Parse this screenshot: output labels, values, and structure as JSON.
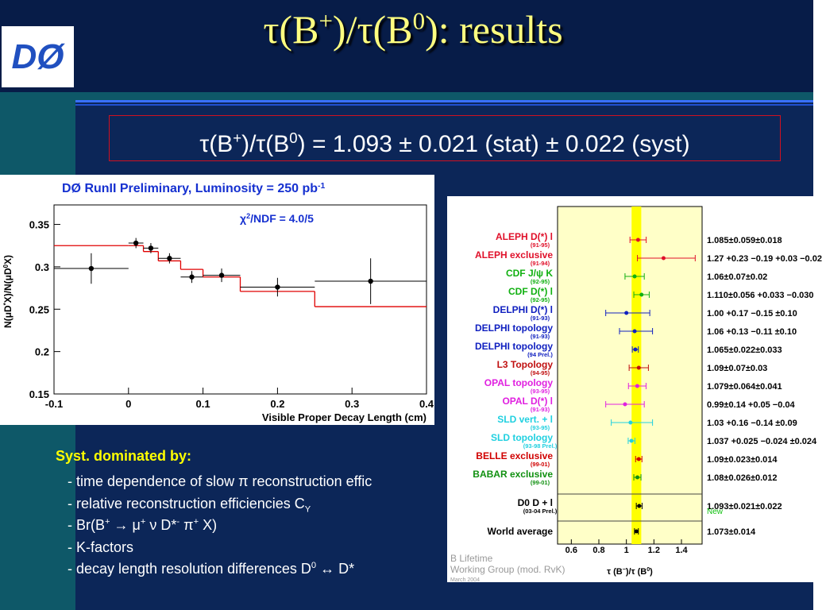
{
  "logo": "DØ",
  "title": [
    {
      "t": "τ(B"
    },
    {
      "sup": "+"
    },
    {
      "t": ")/τ(B"
    },
    {
      "sup": "0"
    },
    {
      "t": "): results"
    }
  ],
  "result": [
    {
      "t": "τ(B"
    },
    {
      "sup": "+"
    },
    {
      "t": ")/τ(B"
    },
    {
      "sup": "0"
    },
    {
      "t": ") = 1.093 ± 0.021 (stat) ± 0.022 (syst)"
    }
  ],
  "syst": {
    "heading": "Syst. dominated by:",
    "items": [
      [
        {
          "t": "- time dependence of slow π reconstruction effic"
        }
      ],
      [
        {
          "t": "- relative reconstruction efficiencies C"
        },
        {
          "sub": "Y"
        }
      ],
      [
        {
          "t": "- Br(B"
        },
        {
          "sup": "+"
        },
        {
          "t": " → μ"
        },
        {
          "sup": "+"
        },
        {
          "t": " ν D*"
        },
        {
          "sup": "-"
        },
        {
          "t": " π"
        },
        {
          "sup": "+"
        },
        {
          "t": " X)"
        }
      ],
      [
        {
          "t": "- K-factors"
        }
      ],
      [
        {
          "t": "- decay length resolution differences D"
        },
        {
          "sup": "0"
        },
        {
          "t": " ↔ D*"
        }
      ]
    ]
  },
  "chart_data": [
    {
      "type": "scatter",
      "title": [
        {
          "t": "DØ  RunII  Preliminary, Luminosity = 250 pb"
        },
        {
          "sup": "-1"
        }
      ],
      "annotation": [
        {
          "t": "χ"
        },
        {
          "sup": "2"
        },
        {
          "t": "/NDF = 4.0/5"
        }
      ],
      "xlabel": "Visible Proper Decay Length (cm)",
      "ylabel": [
        {
          "t": "N(μD"
        },
        {
          "sup": "*"
        },
        {
          "t": "X)/N(μD"
        },
        {
          "sup": "0"
        },
        {
          "t": "X)"
        }
      ],
      "x": [
        -0.05,
        0.01,
        0.03,
        0.055,
        0.085,
        0.125,
        0.2,
        0.325
      ],
      "xerr": [
        0.05,
        0.01,
        0.01,
        0.015,
        0.015,
        0.025,
        0.05,
        0.075
      ],
      "values": [
        0.298,
        0.328,
        0.322,
        0.31,
        0.288,
        0.29,
        0.276,
        0.283
      ],
      "yerr": [
        0.018,
        0.006,
        0.006,
        0.006,
        0.007,
        0.008,
        0.011,
        0.027
      ],
      "color": "#000000",
      "fit": {
        "bins": [
          -0.1,
          0,
          0.02,
          0.04,
          0.07,
          0.1,
          0.15,
          0.25,
          0.4
        ],
        "values": [
          0.325,
          0.325,
          0.318,
          0.307,
          0.297,
          0.288,
          0.271,
          0.253
        ],
        "color": "#e00000"
      },
      "xlim": [
        -0.1,
        0.4
      ],
      "ylim": [
        0.15,
        0.373
      ],
      "xticks": [
        -0.1,
        0,
        0.1,
        0.2,
        0.3,
        0.4
      ],
      "yticks": [
        0.15,
        0.2,
        0.25,
        0.3,
        0.35
      ]
    },
    {
      "type": "forest",
      "categories": [
        "ALEPH D(*) l",
        "ALEPH exclusive",
        "CDF J/ψ K",
        "CDF D(*) l",
        "DELPHI D(*) l",
        "DELPHI topology",
        "DELPHI topology",
        "L3 Topology",
        "OPAL topology",
        "OPAL D(*) l",
        "SLD vert. + l",
        "SLD topology",
        "BELLE exclusive",
        "BABAR exclusive",
        "D0 D + l",
        "World average"
      ],
      "periods": [
        "(91-95)",
        "(91-94)",
        "(92-95)",
        "(92-95)",
        "(91-93)",
        "(91-93)",
        "(94 Prel.)",
        "(94-95)",
        "(93-95)",
        "(91-93)",
        "(93-95)",
        "(93-98 Prel.)",
        "(99-01)",
        "(99-01)",
        "(03-04 Prel.)",
        null
      ],
      "values": [
        1.085,
        1.27,
        1.06,
        1.11,
        1.0,
        1.06,
        1.065,
        1.09,
        1.079,
        0.99,
        1.03,
        1.037,
        1.09,
        1.08,
        1.093,
        1.073
      ],
      "err_minus": [
        0.059,
        0.19,
        0.07,
        0.056,
        0.15,
        0.11,
        0.022,
        0.07,
        0.064,
        0.14,
        0.14,
        0.024,
        0.023,
        0.026,
        0.021,
        0.014
      ],
      "err_plus": [
        0.059,
        0.23,
        0.07,
        0.056,
        0.17,
        0.13,
        0.022,
        0.07,
        0.064,
        0.14,
        0.16,
        0.025,
        0.023,
        0.026,
        0.021,
        0.014
      ],
      "value_labels": [
        "1.085±0.059±0.018",
        "1.27 +0.23 −0.19 +0.03 −0.02",
        "1.06±0.07±0.02",
        "1.110±0.056 +0.033 −0.030",
        "1.00 +0.17 −0.15 ±0.10",
        "1.06 +0.13 −0.11 ±0.10",
        "1.065±0.022±0.033",
        "1.09±0.07±0.03",
        "1.079±0.064±0.041",
        "0.99±0.14 +0.05 −0.04",
        "1.03 +0.16 −0.14 ±0.09",
        "1.037 +0.025 −0.024 ±0.024",
        "1.09±0.023±0.014",
        "1.08±0.026±0.012",
        "1.093±0.021±0.022",
        "1.073±0.014"
      ],
      "colors": [
        "#e0102a",
        "#e0102a",
        "#10b010",
        "#10b010",
        "#1020c0",
        "#1020c0",
        "#1020c0",
        "#c01010",
        "#e020e0",
        "#e020e0",
        "#20d0e0",
        "#20d0e0",
        "#d00000",
        "#109010",
        "#000000",
        "#000000"
      ],
      "annotation": "New",
      "xlabel": [
        {
          "t": "τ (B"
        },
        {
          "sup": "−"
        },
        {
          "t": ")/τ (B"
        },
        {
          "sup": "0"
        },
        {
          "t": ")"
        }
      ],
      "footnote": [
        "B Lifetime",
        "Working Group (mod. RvK)",
        "March 2004"
      ],
      "xlim": [
        0.5,
        1.55
      ],
      "xticks": [
        0.6,
        0.8,
        1,
        1.2,
        1.4
      ]
    }
  ]
}
